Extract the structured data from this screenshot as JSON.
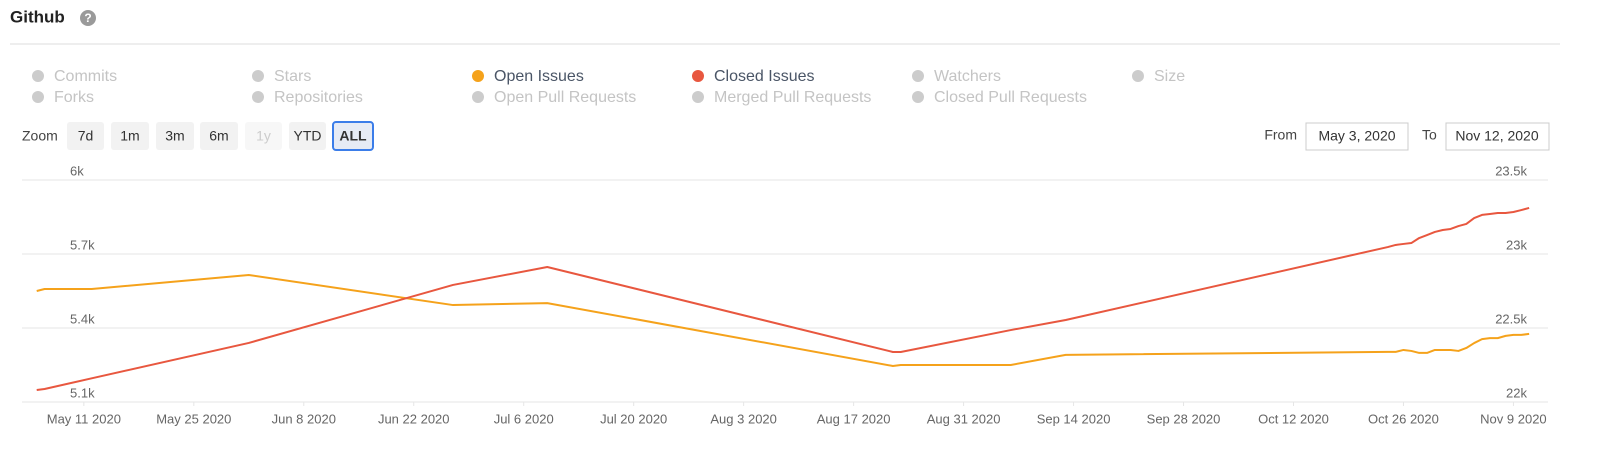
{
  "header": {
    "title": "Github",
    "help_icon": "?"
  },
  "zoom": {
    "label": "Zoom",
    "buttons": [
      "7d",
      "1m",
      "3m",
      "6m",
      "1y",
      "YTD",
      "ALL"
    ],
    "selected": 6,
    "disabled": [
      4
    ]
  },
  "range": {
    "from_label": "From",
    "from": "May 3, 2020",
    "to_label": "To",
    "to": "Nov 12, 2020"
  },
  "chart_data": {
    "type": "line",
    "hidden_color": "#cccccc",
    "other_series": [
      {
        "name": "Commits",
        "visible": false
      },
      {
        "name": "Stars",
        "visible": false
      },
      {
        "name": "Watchers",
        "visible": false
      },
      {
        "name": "Size",
        "visible": false
      },
      {
        "name": "Forks",
        "visible": false
      },
      {
        "name": "Repositories",
        "visible": false
      },
      {
        "name": "Open Pull Requests",
        "visible": false
      },
      {
        "name": "Merged Pull Requests",
        "visible": false
      },
      {
        "name": "Closed Pull Requests",
        "visible": false
      }
    ],
    "x": [
      "2020-05-05",
      "2020-05-06",
      "2020-05-12",
      "2020-06-01",
      "2020-06-27",
      "2020-07-09",
      "2020-08-22",
      "2020-08-23",
      "2020-09-06",
      "2020-09-13",
      "2020-10-24",
      "2020-10-25",
      "2020-10-26",
      "2020-10-27",
      "2020-10-28",
      "2020-10-29",
      "2020-10-30",
      "2020-10-31",
      "2020-11-01",
      "2020-11-02",
      "2020-11-03",
      "2020-11-04",
      "2020-11-05",
      "2020-11-06",
      "2020-11-07",
      "2020-11-08",
      "2020-11-09",
      "2020-11-10",
      "2020-11-11"
    ],
    "series": [
      {
        "name": "Open Issues",
        "color": "#f5a21b",
        "visible": true,
        "values": [
          5550,
          5558,
          5558,
          5615,
          5493,
          5501,
          5246,
          5250,
          5250,
          5291,
          5303,
          5303,
          5311,
          5307,
          5299,
          5299,
          5311,
          5311,
          5311,
          5307,
          5319,
          5339,
          5355,
          5359,
          5359,
          5368,
          5372,
          5372,
          5376
        ]
      },
      {
        "name": "Closed Issues",
        "color": "#e8573f",
        "visible": true,
        "axis": "y2",
        "values": [
          22081,
          22088,
          22160,
          22399,
          22791,
          22912,
          22338,
          22338,
          22486,
          22554,
          23047,
          23061,
          23068,
          23074,
          23108,
          23128,
          23149,
          23162,
          23169,
          23189,
          23203,
          23243,
          23264,
          23270,
          23277,
          23277,
          23284,
          23297,
          23311
        ]
      }
    ],
    "xlim": [
      "2020-05-03",
      "2020-11-12"
    ],
    "xticks": [
      {
        "value": "2020-05-11",
        "label": "May 11 2020"
      },
      {
        "value": "2020-05-25",
        "label": "May 25 2020"
      },
      {
        "value": "2020-06-08",
        "label": "Jun 8 2020"
      },
      {
        "value": "2020-06-22",
        "label": "Jun 22 2020"
      },
      {
        "value": "2020-07-06",
        "label": "Jul 6 2020"
      },
      {
        "value": "2020-07-20",
        "label": "Jul 20 2020"
      },
      {
        "value": "2020-08-03",
        "label": "Aug 3 2020"
      },
      {
        "value": "2020-08-17",
        "label": "Aug 17 2020"
      },
      {
        "value": "2020-08-31",
        "label": "Aug 31 2020"
      },
      {
        "value": "2020-09-14",
        "label": "Sep 14 2020"
      },
      {
        "value": "2020-09-28",
        "label": "Sep 28 2020"
      },
      {
        "value": "2020-10-12",
        "label": "Oct 12 2020"
      },
      {
        "value": "2020-10-26",
        "label": "Oct 26 2020"
      },
      {
        "value": "2020-11-09",
        "label": "Nov 9 2020"
      }
    ],
    "ylim": [
      5100,
      6000
    ],
    "yticks": [
      {
        "value": 5100,
        "label": "5.1k"
      },
      {
        "value": 5400,
        "label": "5.4k"
      },
      {
        "value": 5700,
        "label": "5.7k"
      },
      {
        "value": 6000,
        "label": "6k"
      }
    ],
    "y2lim": [
      22000,
      23500
    ],
    "y2ticks": [
      {
        "value": 22000,
        "label": "22k"
      },
      {
        "value": 22500,
        "label": "22.5k"
      },
      {
        "value": 23000,
        "label": "23k"
      },
      {
        "value": 23500,
        "label": "23.5k"
      }
    ],
    "grid": true
  }
}
